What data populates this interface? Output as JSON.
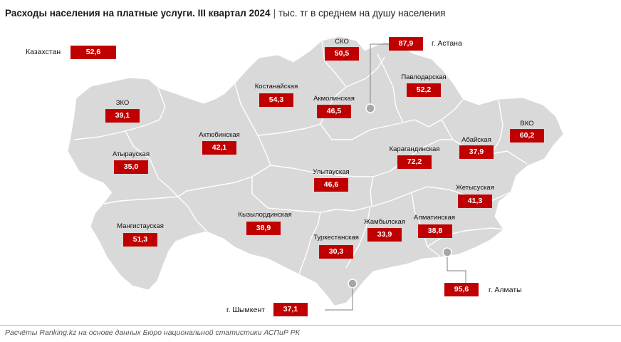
{
  "title": {
    "main": "Расходы населения на платные услуги. III квартал 2024",
    "separator": "|",
    "subtitle": "тыс. тг в среднем на душу населения"
  },
  "national": {
    "label": "Казахстан",
    "value": "52,6"
  },
  "regions": [
    {
      "key": "zko",
      "name": "ЗКО",
      "value": "39,1"
    },
    {
      "key": "atyrau",
      "name": "Атырауская",
      "value": "35,0"
    },
    {
      "key": "mangistau",
      "name": "Мангистауская",
      "value": "51,3"
    },
    {
      "key": "aktobe",
      "name": "Актюбинская",
      "value": "42,1"
    },
    {
      "key": "kostanay",
      "name": "Костанайская",
      "value": "54,3"
    },
    {
      "key": "sko",
      "name": "СКО",
      "value": "50,5"
    },
    {
      "key": "akmola",
      "name": "Акмолинская",
      "value": "46,5"
    },
    {
      "key": "pavlodar",
      "name": "Павлодарская",
      "value": "52,2"
    },
    {
      "key": "vko",
      "name": "ВКО",
      "value": "60,2"
    },
    {
      "key": "abay",
      "name": "Абайская",
      "value": "37,9"
    },
    {
      "key": "karaganda",
      "name": "Карагандинская",
      "value": "72,2"
    },
    {
      "key": "ulytau",
      "name": "Улытауская",
      "value": "46,6"
    },
    {
      "key": "kyzylorda",
      "name": "Кызылординская",
      "value": "38,9"
    },
    {
      "key": "turkestan",
      "name": "Туркестанская",
      "value": "30,3"
    },
    {
      "key": "zhambyl",
      "name": "Жамбылская",
      "value": "33,9"
    },
    {
      "key": "almaty_reg",
      "name": "Алматинская",
      "value": "38,8"
    },
    {
      "key": "zhetysu",
      "name": "Жетысуская",
      "value": "41,3"
    }
  ],
  "cities": [
    {
      "key": "astana",
      "name": "г. Астана",
      "value": "87,9"
    },
    {
      "key": "almaty",
      "name": "г. Алматы",
      "value": "95,6"
    },
    {
      "key": "shymkent",
      "name": "г. Шымкент",
      "value": "37,1"
    }
  ],
  "colors": {
    "value_box": "#c00000",
    "map_fill": "#d9d9d9",
    "region_border": "#ffffff",
    "leader_line": "#7f7f7f",
    "city_marker": "#a6a6a6"
  },
  "footer": "Расчёты Ranking.kz на основе данных Бюро национальной статистики АСПиР РК"
}
